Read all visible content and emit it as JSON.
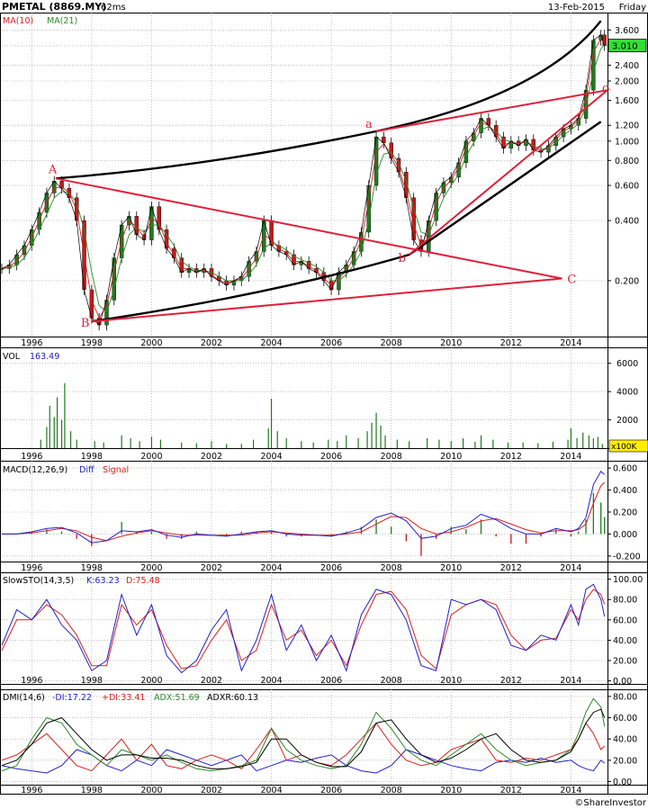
{
  "header": {
    "ticker": "PMETAL (8869.MY)",
    "timing": "62ms",
    "date": "13-Feb-2015",
    "day": "Friday",
    "last_price": "3.010"
  },
  "footer": {
    "credit": "©ShareInvestor"
  },
  "chart_data": [
    {
      "type": "line",
      "panel": "price",
      "scale": "log",
      "title": "",
      "legend": [
        {
          "label": "MA(10)",
          "color": "#d92020"
        },
        {
          "label": "MA(21)",
          "color": "#2a8a2a"
        }
      ],
      "x_ticks": [
        "1996",
        "1998",
        "2000",
        "2002",
        "2004",
        "2006",
        "2008",
        "2010",
        "2012",
        "2014"
      ],
      "y_ticks": [
        "3.600",
        "3.000",
        "2.400",
        "2.000",
        "1.600",
        "1.200",
        "1.000",
        "0.800",
        "0.600",
        "0.400",
        "0.200"
      ],
      "ylim": [
        0.105,
        4.4
      ],
      "x": [
        1995.0,
        1995.25,
        1995.5,
        1995.75,
        1996.0,
        1996.25,
        1996.5,
        1996.75,
        1997.0,
        1997.25,
        1997.5,
        1997.75,
        1998.0,
        1998.25,
        1998.5,
        1998.75,
        1999.0,
        1999.25,
        1999.5,
        1999.75,
        2000.0,
        2000.25,
        2000.5,
        2000.75,
        2001.0,
        2001.25,
        2001.5,
        2001.75,
        2002.0,
        2002.25,
        2002.5,
        2002.75,
        2003.0,
        2003.25,
        2003.5,
        2003.75,
        2004.0,
        2004.25,
        2004.5,
        2004.75,
        2005.0,
        2005.25,
        2005.5,
        2005.75,
        2006.0,
        2006.25,
        2006.5,
        2006.75,
        2007.0,
        2007.25,
        2007.5,
        2007.75,
        2008.0,
        2008.25,
        2008.5,
        2008.75,
        2009.0,
        2009.25,
        2009.5,
        2009.75,
        2010.0,
        2010.25,
        2010.5,
        2010.75,
        2011.0,
        2011.25,
        2011.5,
        2011.75,
        2012.0,
        2012.25,
        2012.5,
        2012.75,
        2013.0,
        2013.25,
        2013.5,
        2013.75,
        2014.0,
        2014.25,
        2014.5,
        2014.75,
        2015.0,
        2015.12
      ],
      "close": [
        0.23,
        0.24,
        0.27,
        0.3,
        0.36,
        0.44,
        0.55,
        0.63,
        0.58,
        0.52,
        0.4,
        0.18,
        0.13,
        0.12,
        0.16,
        0.26,
        0.38,
        0.42,
        0.34,
        0.32,
        0.47,
        0.36,
        0.29,
        0.26,
        0.22,
        0.23,
        0.22,
        0.23,
        0.21,
        0.2,
        0.19,
        0.2,
        0.21,
        0.25,
        0.28,
        0.4,
        0.3,
        0.28,
        0.27,
        0.24,
        0.25,
        0.23,
        0.22,
        0.2,
        0.18,
        0.22,
        0.24,
        0.28,
        0.35,
        0.6,
        1.05,
        0.98,
        0.82,
        0.7,
        0.52,
        0.32,
        0.28,
        0.4,
        0.55,
        0.62,
        0.66,
        0.78,
        1.0,
        1.1,
        1.3,
        1.2,
        1.05,
        0.92,
        1.0,
        0.95,
        1.02,
        0.9,
        0.88,
        0.95,
        1.05,
        1.15,
        1.2,
        1.3,
        1.8,
        3.2,
        3.4,
        3.01
      ],
      "ma10": [
        0.23,
        0.235,
        0.25,
        0.28,
        0.33,
        0.4,
        0.49,
        0.58,
        0.59,
        0.55,
        0.45,
        0.27,
        0.16,
        0.13,
        0.15,
        0.22,
        0.32,
        0.4,
        0.37,
        0.33,
        0.41,
        0.39,
        0.31,
        0.27,
        0.23,
        0.23,
        0.22,
        0.225,
        0.215,
        0.2,
        0.195,
        0.2,
        0.205,
        0.23,
        0.26,
        0.34,
        0.32,
        0.29,
        0.275,
        0.25,
        0.25,
        0.235,
        0.225,
        0.205,
        0.19,
        0.205,
        0.225,
        0.26,
        0.32,
        0.5,
        0.88,
        0.97,
        0.86,
        0.73,
        0.56,
        0.38,
        0.3,
        0.36,
        0.49,
        0.58,
        0.64,
        0.74,
        0.93,
        1.06,
        1.24,
        1.2,
        1.08,
        0.96,
        0.98,
        0.96,
        1.0,
        0.93,
        0.89,
        0.93,
        1.02,
        1.12,
        1.18,
        1.27,
        1.65,
        2.8,
        3.25,
        3.1
      ],
      "ma21": [
        0.23,
        0.232,
        0.24,
        0.26,
        0.3,
        0.36,
        0.43,
        0.52,
        0.56,
        0.55,
        0.49,
        0.36,
        0.22,
        0.15,
        0.14,
        0.18,
        0.26,
        0.34,
        0.37,
        0.35,
        0.38,
        0.38,
        0.34,
        0.3,
        0.25,
        0.235,
        0.225,
        0.225,
        0.22,
        0.21,
        0.2,
        0.2,
        0.2,
        0.215,
        0.24,
        0.29,
        0.31,
        0.3,
        0.285,
        0.265,
        0.255,
        0.245,
        0.235,
        0.22,
        0.2,
        0.2,
        0.215,
        0.24,
        0.28,
        0.4,
        0.68,
        0.86,
        0.88,
        0.78,
        0.63,
        0.46,
        0.35,
        0.34,
        0.42,
        0.52,
        0.6,
        0.68,
        0.84,
        0.98,
        1.14,
        1.18,
        1.12,
        1.02,
        0.99,
        0.97,
        0.99,
        0.95,
        0.91,
        0.92,
        0.98,
        1.07,
        1.14,
        1.22,
        1.48,
        2.25,
        2.9,
        3.05
      ],
      "trendline_labels": [
        "A",
        "B",
        "C",
        "a",
        "b",
        "c"
      ]
    },
    {
      "type": "bar",
      "panel": "volume",
      "title": "VOL",
      "last_value": "163.49",
      "unit": "x100K",
      "y_ticks": [
        "6000",
        "4000",
        "2000"
      ],
      "ylim": [
        0,
        7000
      ],
      "x": [
        1996.3,
        1996.5,
        1996.6,
        1996.75,
        1996.85,
        1997.0,
        1997.1,
        1997.3,
        1997.5,
        1998.1,
        1998.4,
        1999.0,
        1999.3,
        1999.6,
        2000.0,
        2000.3,
        2001.0,
        2001.5,
        2002.0,
        2002.5,
        2003.0,
        2003.4,
        2003.9,
        2004.0,
        2004.2,
        2004.5,
        2005.0,
        2005.4,
        2005.9,
        2006.2,
        2006.5,
        2006.9,
        2007.2,
        2007.35,
        2007.5,
        2007.65,
        2007.8,
        2008.2,
        2008.6,
        2009.2,
        2009.6,
        2010.0,
        2010.4,
        2010.8,
        2011.0,
        2011.4,
        2011.9,
        2012.4,
        2012.9,
        2013.4,
        2013.9,
        2014.0,
        2014.2,
        2014.4,
        2014.6,
        2014.75,
        2014.9,
        2015.05
      ],
      "values": [
        600,
        1500,
        3000,
        2200,
        3600,
        2000,
        4600,
        1200,
        600,
        500,
        400,
        900,
        700,
        500,
        800,
        600,
        400,
        350,
        500,
        300,
        300,
        600,
        1400,
        3500,
        1200,
        700,
        500,
        400,
        600,
        500,
        900,
        700,
        1200,
        1800,
        2500,
        1600,
        900,
        600,
        500,
        700,
        600,
        500,
        700,
        450,
        900,
        600,
        400,
        400,
        350,
        450,
        600,
        1400,
        700,
        1100,
        900,
        700,
        800,
        300
      ]
    },
    {
      "type": "line",
      "panel": "macd",
      "title": "MACD(12,26,9)",
      "legend": [
        {
          "label": "Diff",
          "color": "#2020cc"
        },
        {
          "label": "Signal",
          "color": "#d92020"
        }
      ],
      "y_ticks": [
        "0.600",
        "0.400",
        "0.200",
        "0.000",
        "-0.200"
      ],
      "ylim": [
        -0.25,
        0.65
      ],
      "x": [
        1995.0,
        1995.5,
        1996.0,
        1996.5,
        1997.0,
        1997.5,
        1998.0,
        1998.5,
        1999.0,
        1999.5,
        2000.0,
        2000.5,
        2001.0,
        2001.5,
        2002.0,
        2002.5,
        2003.0,
        2003.5,
        2004.0,
        2004.5,
        2005.0,
        2005.5,
        2006.0,
        2006.5,
        2007.0,
        2007.5,
        2008.0,
        2008.5,
        2009.0,
        2009.5,
        2010.0,
        2010.5,
        2011.0,
        2011.5,
        2012.0,
        2012.5,
        2013.0,
        2013.5,
        2014.0,
        2014.25,
        2014.5,
        2014.75,
        2015.0,
        2015.12
      ],
      "diff": [
        0.0,
        0.0,
        0.02,
        0.05,
        0.06,
        0.01,
        -0.08,
        -0.06,
        0.03,
        0.02,
        0.04,
        -0.01,
        -0.03,
        0.0,
        -0.01,
        -0.02,
        0.0,
        0.02,
        0.03,
        0.0,
        -0.01,
        -0.01,
        -0.02,
        0.01,
        0.05,
        0.15,
        0.19,
        0.12,
        -0.04,
        -0.02,
        0.05,
        0.08,
        0.18,
        0.13,
        0.05,
        0.0,
        0.0,
        0.05,
        0.02,
        0.05,
        0.15,
        0.45,
        0.57,
        0.54
      ],
      "signal": [
        0.0,
        0.0,
        0.01,
        0.03,
        0.05,
        0.03,
        -0.03,
        -0.06,
        -0.02,
        0.01,
        0.03,
        0.01,
        -0.01,
        -0.01,
        -0.01,
        -0.01,
        -0.01,
        0.01,
        0.02,
        0.01,
        0.0,
        -0.01,
        -0.01,
        0.0,
        0.02,
        0.09,
        0.16,
        0.15,
        0.05,
        0.0,
        0.02,
        0.06,
        0.12,
        0.14,
        0.09,
        0.04,
        0.01,
        0.03,
        0.03,
        0.04,
        0.09,
        0.28,
        0.44,
        0.47
      ]
    },
    {
      "type": "line",
      "panel": "slowsto",
      "title": "SlowSTO(14,3,5)",
      "legend": [
        {
          "label": "K:63.23",
          "color": "#2020cc"
        },
        {
          "label": "D:75.48",
          "color": "#d92020"
        }
      ],
      "y_ticks": [
        "100.00",
        "80.00",
        "60.00",
        "40.00",
        "20.00",
        "0.00"
      ],
      "ylim": [
        -3,
        105
      ],
      "x": [
        1995.0,
        1995.5,
        1996.0,
        1996.5,
        1997.0,
        1997.5,
        1998.0,
        1998.5,
        1999.0,
        1999.5,
        2000.0,
        2000.5,
        2001.0,
        2001.5,
        2002.0,
        2002.5,
        2003.0,
        2003.5,
        2004.0,
        2004.5,
        2005.0,
        2005.5,
        2006.0,
        2006.5,
        2007.0,
        2007.5,
        2008.0,
        2008.5,
        2009.0,
        2009.5,
        2010.0,
        2010.5,
        2011.0,
        2011.5,
        2012.0,
        2012.5,
        2013.0,
        2013.5,
        2014.0,
        2014.25,
        2014.5,
        2014.75,
        2015.0,
        2015.12
      ],
      "k": [
        35,
        70,
        60,
        80,
        55,
        40,
        10,
        20,
        85,
        45,
        75,
        25,
        8,
        20,
        50,
        70,
        10,
        40,
        85,
        30,
        55,
        20,
        45,
        10,
        65,
        90,
        85,
        60,
        15,
        10,
        80,
        75,
        80,
        70,
        35,
        30,
        45,
        40,
        75,
        55,
        90,
        95,
        80,
        63.23
      ],
      "d": [
        30,
        60,
        60,
        75,
        65,
        45,
        15,
        15,
        75,
        55,
        70,
        35,
        12,
        15,
        40,
        60,
        20,
        30,
        75,
        40,
        50,
        25,
        40,
        15,
        55,
        85,
        88,
        70,
        25,
        12,
        65,
        75,
        80,
        75,
        45,
        30,
        40,
        42,
        70,
        60,
        80,
        90,
        85,
        75.48
      ]
    },
    {
      "type": "line",
      "panel": "dmi",
      "title": "DMI(14,6)",
      "legend": [
        {
          "label": "-DI:17.22",
          "color": "#2020cc"
        },
        {
          "label": "+DI:33.41",
          "color": "#d92020"
        },
        {
          "label": "ADX:51.69",
          "color": "#2a8a2a"
        },
        {
          "label": "ADXR:60.13",
          "color": "#000000"
        }
      ],
      "y_ticks": [
        "80.00",
        "60.00",
        "40.00",
        "20.00",
        "0.00"
      ],
      "ylim": [
        -3,
        85
      ],
      "x": [
        1995.0,
        1995.5,
        1996.0,
        1996.5,
        1997.0,
        1997.5,
        1998.0,
        1998.5,
        1999.0,
        1999.5,
        2000.0,
        2000.5,
        2001.0,
        2001.5,
        2002.0,
        2002.5,
        2003.0,
        2003.5,
        2004.0,
        2004.5,
        2005.0,
        2005.5,
        2006.0,
        2006.5,
        2007.0,
        2007.5,
        2008.0,
        2008.5,
        2009.0,
        2009.5,
        2010.0,
        2010.5,
        2011.0,
        2011.5,
        2012.0,
        2012.5,
        2013.0,
        2013.5,
        2014.0,
        2014.25,
        2014.5,
        2014.75,
        2015.0,
        2015.12
      ],
      "minus_di": [
        15,
        12,
        10,
        8,
        15,
        30,
        25,
        15,
        10,
        20,
        15,
        30,
        25,
        20,
        15,
        20,
        25,
        10,
        15,
        20,
        18,
        22,
        25,
        15,
        10,
        8,
        15,
        30,
        25,
        20,
        15,
        12,
        10,
        18,
        20,
        18,
        22,
        18,
        20,
        15,
        12,
        10,
        20,
        17.22
      ],
      "plus_di": [
        20,
        25,
        35,
        45,
        30,
        15,
        10,
        25,
        40,
        20,
        35,
        15,
        12,
        20,
        25,
        20,
        12,
        30,
        50,
        20,
        25,
        18,
        15,
        25,
        40,
        55,
        35,
        20,
        15,
        18,
        30,
        35,
        40,
        20,
        18,
        22,
        20,
        25,
        30,
        40,
        55,
        45,
        30,
        33.41
      ],
      "adx": [
        10,
        15,
        40,
        60,
        55,
        35,
        25,
        15,
        30,
        25,
        20,
        25,
        18,
        12,
        10,
        12,
        15,
        20,
        50,
        30,
        20,
        15,
        12,
        15,
        35,
        65,
        50,
        30,
        20,
        15,
        25,
        35,
        45,
        30,
        20,
        15,
        18,
        20,
        30,
        45,
        65,
        78,
        70,
        51.69
      ],
      "adxr": [
        15,
        20,
        35,
        55,
        60,
        45,
        30,
        20,
        25,
        25,
        22,
        22,
        20,
        15,
        12,
        12,
        14,
        18,
        40,
        40,
        25,
        18,
        14,
        14,
        28,
        55,
        58,
        40,
        25,
        18,
        22,
        30,
        40,
        45,
        30,
        20,
        18,
        20,
        28,
        40,
        55,
        65,
        68,
        60.13
      ]
    }
  ]
}
